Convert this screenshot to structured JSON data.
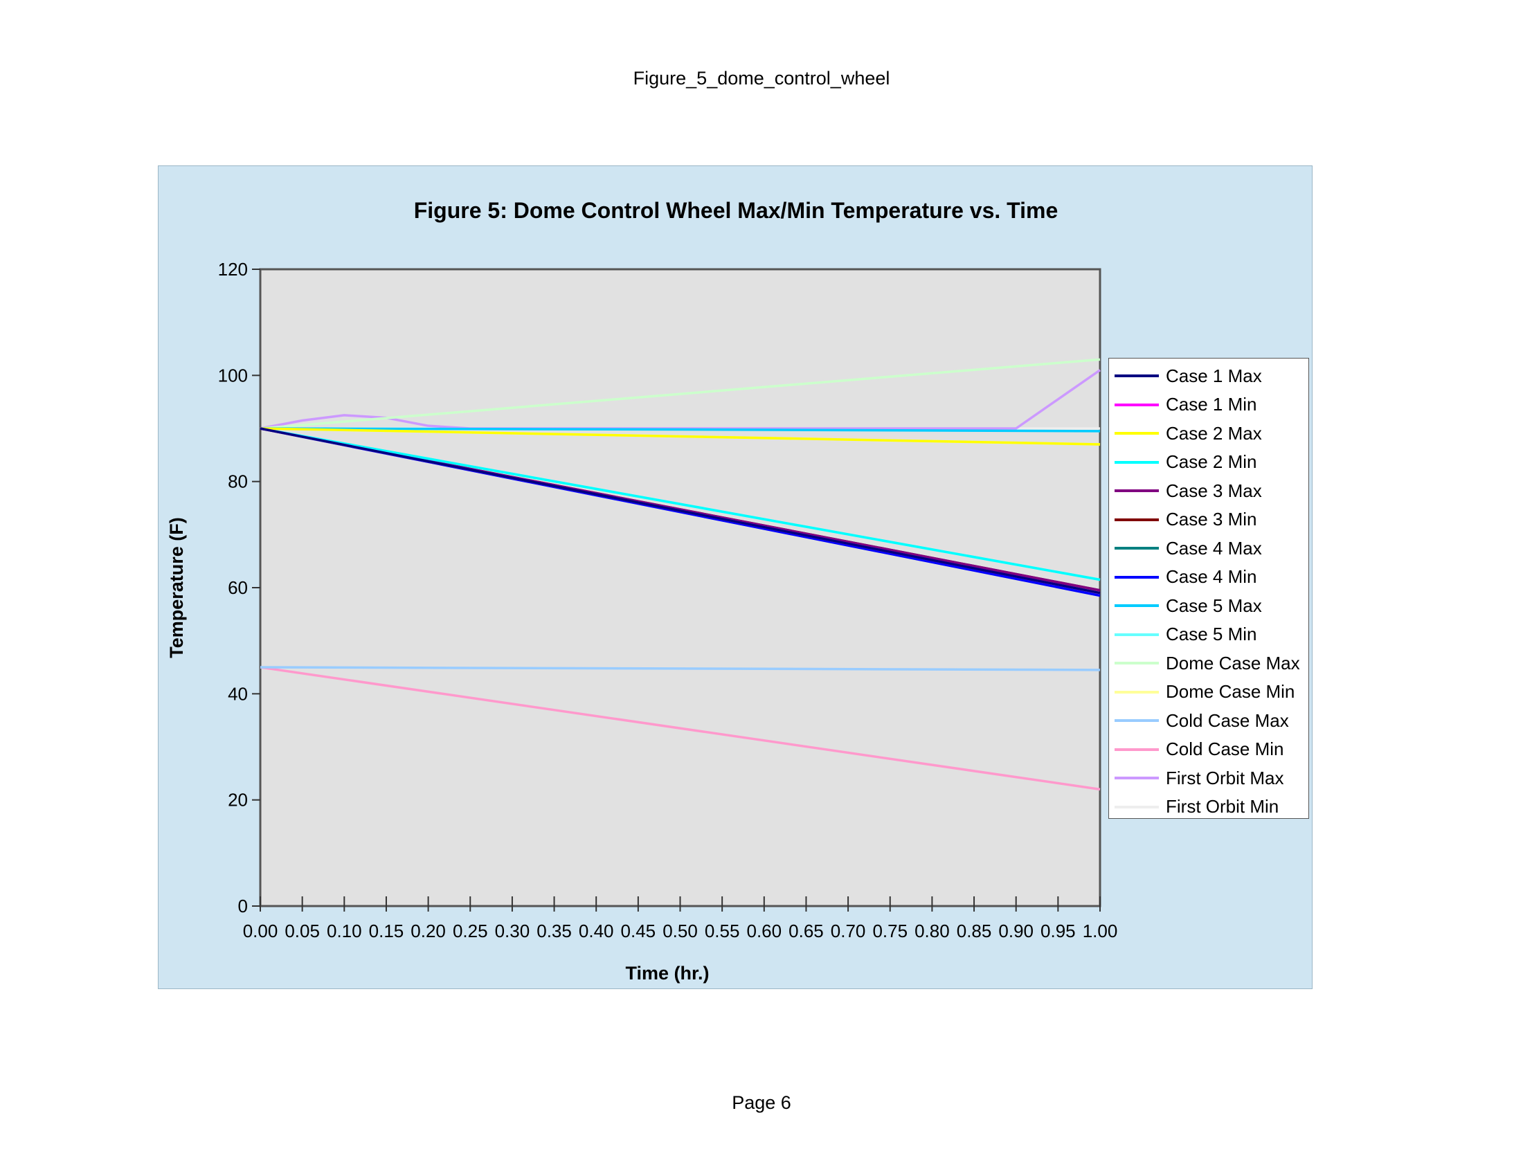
{
  "page": {
    "header": "Figure_5_dome_control_wheel",
    "footer": "Page 6"
  },
  "chart_data": {
    "type": "line",
    "title": "Figure 5: Dome Control Wheel Max/Min Temperature vs. Time",
    "xlabel": "Time (hr.)",
    "ylabel": "Temperature (F)",
    "xlim": [
      0,
      1
    ],
    "ylim": [
      0,
      120
    ],
    "x_ticks": [
      "0.00",
      "0.05",
      "0.10",
      "0.15",
      "0.20",
      "0.25",
      "0.30",
      "0.35",
      "0.40",
      "0.45",
      "0.50",
      "0.55",
      "0.60",
      "0.65",
      "0.70",
      "0.75",
      "0.80",
      "0.85",
      "0.90",
      "0.95",
      "1.00"
    ],
    "y_ticks": [
      "0",
      "20",
      "40",
      "60",
      "80",
      "100",
      "120"
    ],
    "grid": false,
    "legend_position": "right",
    "plot_background": "#e1e1e1",
    "chart_background": "#cfe5f2",
    "series": [
      {
        "name": "Case 1 Max",
        "color": "#000080",
        "x": [
          0,
          1
        ],
        "y": [
          90,
          59
        ]
      },
      {
        "name": "Case 1 Min",
        "color": "#ff00ff",
        "x": [
          0,
          1
        ],
        "y": [
          90,
          59
        ]
      },
      {
        "name": "Case 2 Max",
        "color": "#ffff00",
        "x": [
          0,
          1
        ],
        "y": [
          90,
          87
        ]
      },
      {
        "name": "Case 2 Min",
        "color": "#00ffff",
        "x": [
          0,
          1
        ],
        "y": [
          90,
          61.5
        ]
      },
      {
        "name": "Case 3 Max",
        "color": "#800080",
        "x": [
          0,
          1
        ],
        "y": [
          90,
          59.5
        ]
      },
      {
        "name": "Case 3 Min",
        "color": "#800000",
        "x": [
          0,
          1
        ],
        "y": [
          90,
          59.5
        ]
      },
      {
        "name": "Case 4 Max",
        "color": "#008080",
        "x": [
          0,
          1
        ],
        "y": [
          90,
          59
        ]
      },
      {
        "name": "Case 4 Min",
        "color": "#0000ff",
        "x": [
          0,
          1
        ],
        "y": [
          90,
          58.5
        ]
      },
      {
        "name": "Case 5 Max",
        "color": "#00ccff",
        "x": [
          0,
          0.5,
          1
        ],
        "y": [
          90,
          89.8,
          89.5
        ]
      },
      {
        "name": "Case 5 Min",
        "color": "#66ffff",
        "x": [
          0,
          1
        ],
        "y": [
          90,
          61.5
        ]
      },
      {
        "name": "Dome Case Max",
        "color": "#ccffcc",
        "x": [
          0,
          1
        ],
        "y": [
          90,
          103
        ]
      },
      {
        "name": "Dome Case Min",
        "color": "#ffff99",
        "x": [
          0,
          1
        ],
        "y": [
          90,
          87
        ]
      },
      {
        "name": "Cold Case Max",
        "color": "#99ccff",
        "x": [
          0,
          1
        ],
        "y": [
          45,
          44.5
        ]
      },
      {
        "name": "Cold Case Min",
        "color": "#ff99cc",
        "x": [
          0,
          1
        ],
        "y": [
          45,
          22
        ]
      },
      {
        "name": "First Orbit Max",
        "color": "#cc99ff",
        "x": [
          0,
          0.05,
          0.1,
          0.15,
          0.2,
          0.25,
          0.85,
          0.9,
          1
        ],
        "y": [
          90,
          91.5,
          92.5,
          92,
          90.5,
          90,
          90,
          90,
          101
        ]
      },
      {
        "name": "First Orbit Min",
        "color": "#eeeeee",
        "x": [
          0,
          1
        ],
        "y": [
          90,
          90
        ]
      }
    ]
  }
}
